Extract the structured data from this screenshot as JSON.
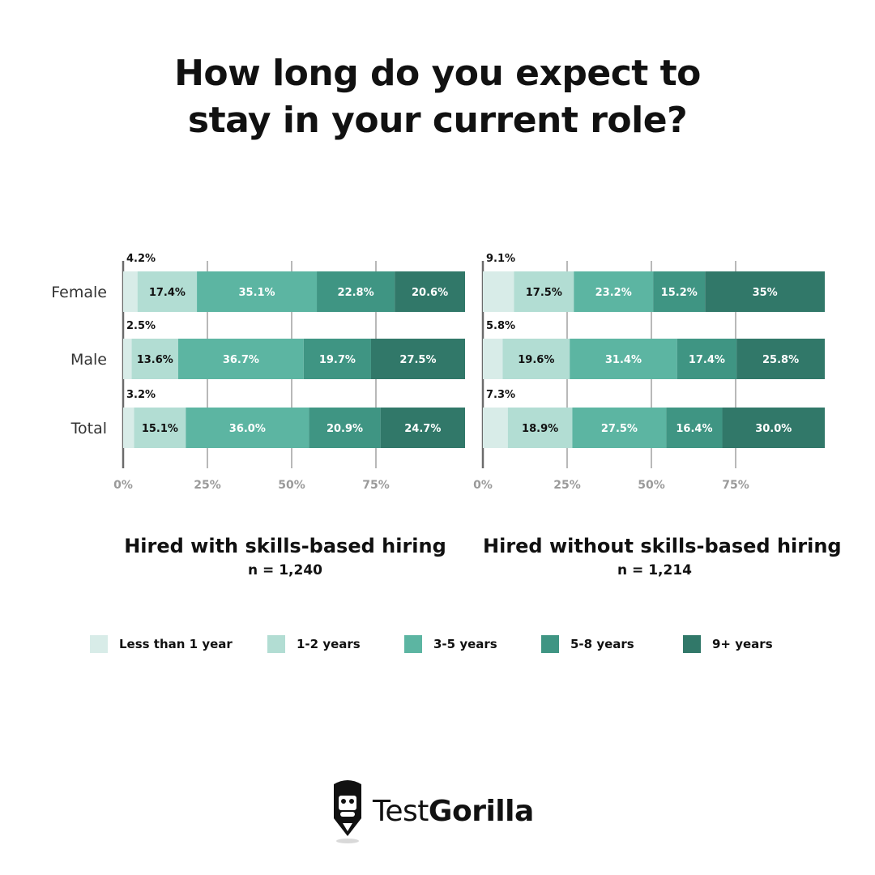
{
  "title": {
    "line1": "How long do you expect to",
    "line2": "stay in your current role?"
  },
  "chart_data": {
    "type": "bar",
    "orientation": "horizontal-stacked",
    "categories": [
      "Female",
      "Male",
      "Total"
    ],
    "x_ticks": [
      "0%",
      "25%",
      "50%",
      "75%"
    ],
    "legend": [
      {
        "name": "Less than 1 year",
        "color": "#d8ece8"
      },
      {
        "name": "1-2 years",
        "color": "#b2ddd3"
      },
      {
        "name": "3-5 years",
        "color": "#5cb5a2"
      },
      {
        "name": "5-8 years",
        "color": "#3f9583"
      },
      {
        "name": "9+ years",
        "color": "#317869"
      }
    ],
    "panels": [
      {
        "title": "Hired with skills-based hiring",
        "n": "n = 1,240",
        "rows": [
          {
            "category": "Female",
            "values": [
              4.2,
              17.4,
              35.1,
              22.8,
              20.6
            ],
            "labels": [
              "4.2%",
              "17.4%",
              "35.1%",
              "22.8%",
              "20.6%"
            ]
          },
          {
            "category": "Male",
            "values": [
              2.5,
              13.6,
              36.7,
              19.7,
              27.5
            ],
            "labels": [
              "2.5%",
              "13.6%",
              "36.7%",
              "19.7%",
              "27.5%"
            ]
          },
          {
            "category": "Total",
            "values": [
              3.2,
              15.1,
              36.0,
              20.9,
              24.7
            ],
            "labels": [
              "3.2%",
              "15.1%",
              "36.0%",
              "20.9%",
              "24.7%"
            ]
          }
        ]
      },
      {
        "title": "Hired without skills-based hiring",
        "n": "n = 1,214",
        "rows": [
          {
            "category": "Female",
            "values": [
              9.1,
              17.5,
              23.2,
              15.2,
              35
            ],
            "labels": [
              "9.1%",
              "17.5%",
              "23.2%",
              "15.2%",
              "35%"
            ]
          },
          {
            "category": "Male",
            "values": [
              5.8,
              19.6,
              31.4,
              17.4,
              25.8
            ],
            "labels": [
              "5.8%",
              "19.6%",
              "31.4%",
              "17.4%",
              "25.8%"
            ]
          },
          {
            "category": "Total",
            "values": [
              7.3,
              18.9,
              27.5,
              16.4,
              30.0
            ],
            "labels": [
              "7.3%",
              "18.9%",
              "27.5%",
              "16.4%",
              "30.0%"
            ]
          }
        ]
      }
    ]
  },
  "brand": {
    "name_light": "Test",
    "name_bold": "Gorilla"
  }
}
